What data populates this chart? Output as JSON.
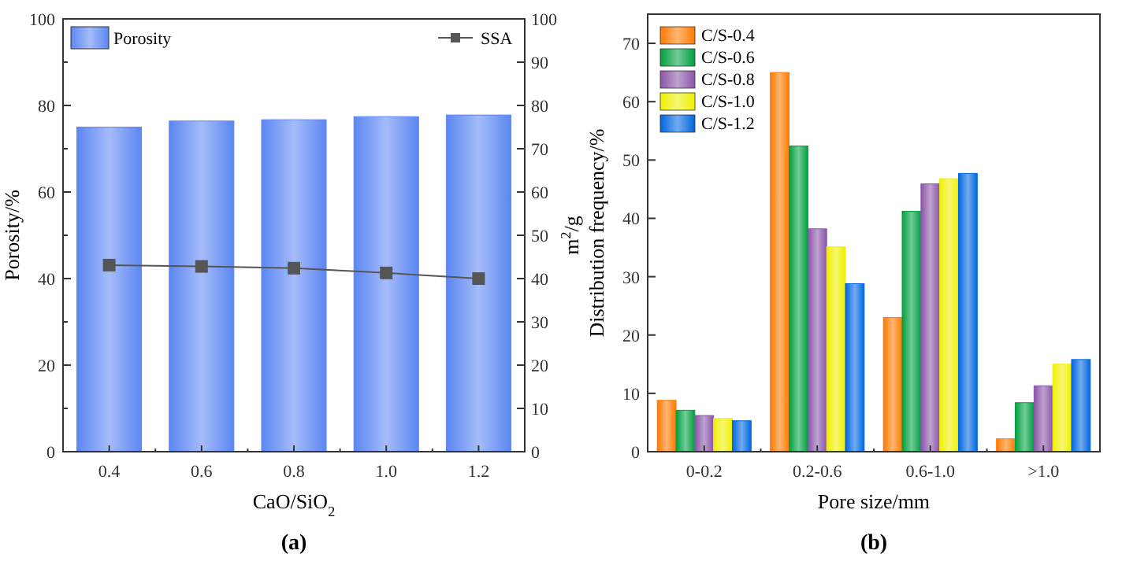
{
  "chart_data": [
    {
      "type": "bar",
      "title": "(a)",
      "xlabel": "CaO/SiO$_{2}$",
      "ylabel": "Porosity/%",
      "y2label": "m$^{2}$/g",
      "categories": [
        "0.4",
        "0.6",
        "0.8",
        "1.0",
        "1.2"
      ],
      "series": [
        {
          "name": "Porosity",
          "color": "#5c86f2",
          "values": [
            75.0,
            76.4,
            76.7,
            77.4,
            77.8
          ]
        },
        {
          "name": "SSA",
          "type": "line",
          "axis": "y2",
          "color": "#555555",
          "values": [
            43.1,
            42.8,
            42.4,
            41.3,
            40.0
          ]
        }
      ],
      "ylim": [
        0,
        100
      ],
      "yticks": [
        0,
        {
          "value": 10,
          "label": null
        },
        20,
        {
          "value": 30,
          "label": null
        },
        40,
        {
          "value": 50,
          "label": null
        },
        60,
        {
          "value": 70,
          "label": null
        },
        80,
        {
          "value": 90,
          "label": null
        },
        100
      ],
      "y2lim": [
        0,
        100
      ],
      "y2ticks": [
        0,
        10,
        20,
        30,
        40,
        50,
        60,
        70,
        80,
        90,
        100
      ],
      "marker": "square",
      "grid": false,
      "legend": "top"
    },
    {
      "type": "bar",
      "title": "(b)",
      "xlabel": "Pore size/mm",
      "ylabel": "Distribution frequency/%",
      "categories": [
        "0-0.2",
        "0.2-0.6",
        "0.6-1.0",
        ">1.0"
      ],
      "series": [
        {
          "name": "C/S-0.4",
          "color": "#ff7a00",
          "values": [
            8.8,
            65.0,
            23.0,
            2.2
          ]
        },
        {
          "name": "C/S-0.6",
          "color": "#00a040",
          "values": [
            7.1,
            52.4,
            41.2,
            8.4
          ]
        },
        {
          "name": "C/S-0.8",
          "color": "#8a55a8",
          "values": [
            6.2,
            38.2,
            45.9,
            11.3
          ]
        },
        {
          "name": "C/S-1.0",
          "color": "#f0f000",
          "values": [
            5.7,
            35.1,
            46.8,
            15.0
          ]
        },
        {
          "name": "C/S-1.2",
          "color": "#0066e0",
          "values": [
            5.3,
            28.8,
            47.7,
            15.8
          ]
        }
      ],
      "ylim": [
        0,
        75
      ],
      "yticks": [
        0,
        10,
        20,
        30,
        40,
        50,
        60,
        70
      ],
      "grid": false,
      "legend": "top left"
    }
  ]
}
